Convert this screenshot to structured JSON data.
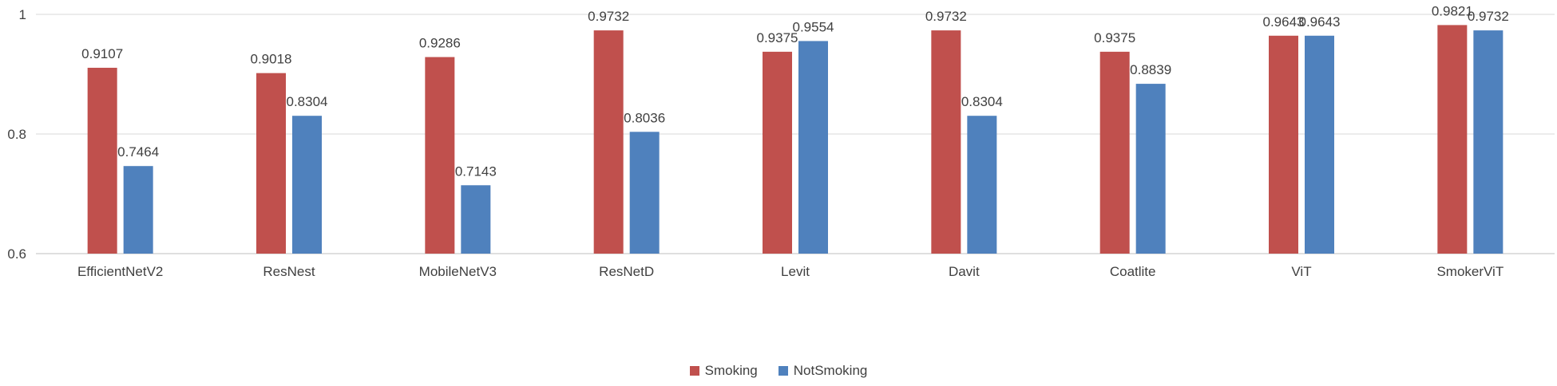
{
  "chart_data": {
    "type": "bar",
    "title": "",
    "xlabel": "",
    "ylabel": "",
    "ylim": [
      0.6,
      1.0
    ],
    "yticks": [
      0.6,
      0.8,
      1.0
    ],
    "ytick_labels": [
      "0.6",
      "0.8",
      "1"
    ],
    "grid": true,
    "legend_position": "bottom",
    "categories": [
      "EfficientNetV2",
      "ResNest",
      "MobileNetV3",
      "ResNetD",
      "Levit",
      "Davit",
      "Coatlite",
      "ViT",
      "SmokerViT"
    ],
    "series": [
      {
        "name": "Smoking",
        "color": "#C0504D",
        "values": [
          0.9107,
          0.9018,
          0.9286,
          0.9732,
          0.9375,
          0.9732,
          0.9375,
          0.9643,
          0.9821
        ],
        "labels": [
          "0.9107",
          "0.9018",
          "0.9286",
          "0.9732",
          "0.9375",
          "0.9732",
          "0.9375",
          "0.9643",
          "0.9821"
        ]
      },
      {
        "name": "NotSmoking",
        "color": "#4F81BD",
        "values": [
          0.7464,
          0.8304,
          0.7143,
          0.8036,
          0.9554,
          0.8304,
          0.8839,
          0.9643,
          0.9732
        ],
        "labels": [
          "0.7464",
          "0.8304",
          "0.7143",
          "0.8036",
          "0.9554",
          "0.8304",
          "0.8839",
          "0.9643",
          "0.9732"
        ]
      }
    ]
  }
}
